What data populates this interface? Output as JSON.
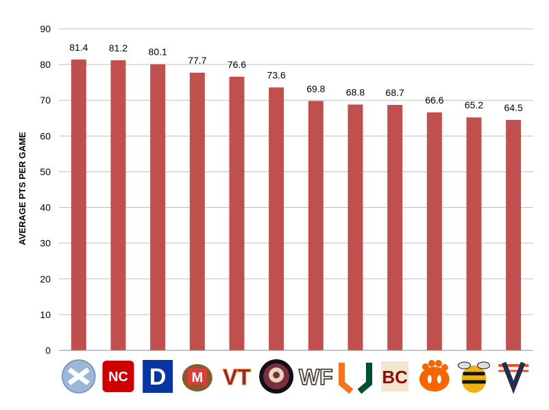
{
  "chart_data": {
    "type": "bar",
    "ylabel": "AVERAGE PTS PER GAME",
    "ylim": [
      0,
      90
    ],
    "yticks": [
      0,
      10,
      20,
      30,
      40,
      50,
      60,
      70,
      80,
      90
    ],
    "grid": true,
    "bar_color": "#c0504d",
    "categories": [
      "UNC",
      "NC State",
      "Duke",
      "Maryland",
      "Virginia Tech",
      "Florida State",
      "Wake Forest",
      "Miami",
      "Boston College",
      "Clemson",
      "Georgia Tech",
      "Virginia"
    ],
    "category_icons": [
      "unc-logo",
      "nc-state-logo",
      "duke-logo",
      "maryland-logo",
      "virginia-tech-logo",
      "florida-state-logo",
      "wake-forest-logo",
      "miami-logo",
      "boston-college-logo",
      "clemson-logo",
      "georgia-tech-logo",
      "virginia-logo"
    ],
    "values": [
      81.4,
      81.2,
      80.1,
      77.7,
      76.6,
      73.6,
      69.8,
      68.8,
      68.7,
      66.6,
      65.2,
      64.5
    ],
    "value_labels": [
      "81.4",
      "81.2",
      "80.1",
      "77.7",
      "76.6",
      "73.6",
      "69.8",
      "68.8",
      "68.7",
      "66.6",
      "65.2",
      "64.5"
    ]
  },
  "logos": {
    "nc_state": "NC",
    "duke": "D",
    "maryland": "M",
    "virginia_tech": "VT",
    "wake_forest": "WF",
    "miami": "U",
    "boston_college": "BC",
    "georgia_tech": "GT",
    "virginia": "V"
  }
}
